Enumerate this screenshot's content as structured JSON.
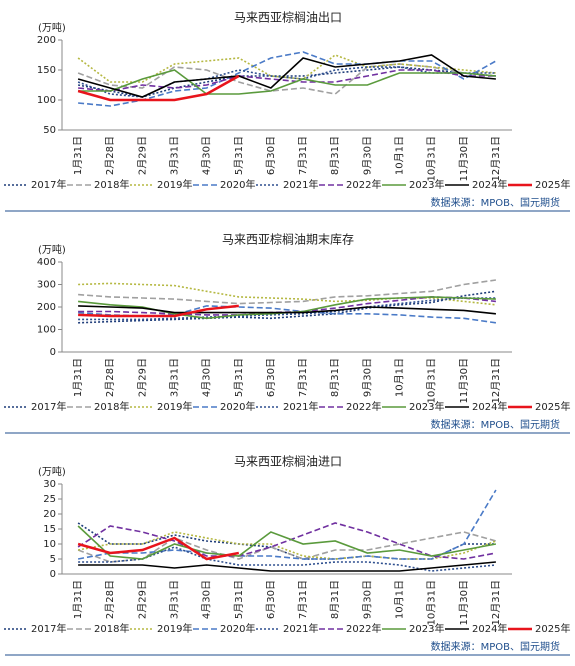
{
  "chart_data": [
    {
      "type": "line",
      "title": "马来西亚棕榈油出口",
      "y_label": "(万吨)",
      "source": "数据来源：MPOB、国元期货",
      "categories": [
        "1月31日",
        "2月28日",
        "2月29日",
        "3月31日",
        "4月30日",
        "5月31日",
        "6月30日",
        "7月31日",
        "8月31日",
        "9月30日",
        "10月1日",
        "10月31日",
        "11月30日",
        "12月31日"
      ],
      "ylim": [
        50,
        200
      ],
      "yticks": [
        50,
        100,
        150,
        200
      ],
      "series": [
        {
          "name": "2017年",
          "color": "#1f3d7a",
          "style": "dotted",
          "values": [
            125,
            115,
            105,
            120,
            130,
            140,
            140,
            140,
            145,
            150,
            155,
            150,
            145,
            140
          ]
        },
        {
          "name": "2018年",
          "color": "#a0a0a0",
          "style": "dashed",
          "values": [
            145,
            125,
            120,
            155,
            150,
            130,
            115,
            120,
            110,
            155,
            160,
            155,
            145,
            140
          ]
        },
        {
          "name": "2019年",
          "color": "#b5b842",
          "style": "dotted",
          "values": [
            170,
            130,
            130,
            160,
            165,
            170,
            140,
            135,
            175,
            155,
            160,
            155,
            150,
            145
          ]
        },
        {
          "name": "2020年",
          "color": "#4a7ac7",
          "style": "dashed",
          "values": [
            95,
            90,
            100,
            115,
            120,
            145,
            170,
            180,
            160,
            160,
            165,
            165,
            135,
            165
          ]
        },
        {
          "name": "2021年",
          "color": "#2e4f8f",
          "style": "dotted",
          "values": [
            130,
            110,
            105,
            130,
            135,
            150,
            140,
            135,
            150,
            155,
            155,
            145,
            145,
            145
          ]
        },
        {
          "name": "2022年",
          "color": "#7030a0",
          "style": "dashed",
          "values": [
            120,
            115,
            125,
            120,
            125,
            140,
            135,
            130,
            130,
            140,
            150,
            150,
            140,
            140
          ]
        },
        {
          "name": "2023年",
          "color": "#5a9a3c",
          "style": "solid",
          "values": [
            115,
            115,
            135,
            150,
            110,
            110,
            115,
            135,
            125,
            125,
            145,
            145,
            145,
            140
          ]
        },
        {
          "name": "2024年",
          "color": "#000000",
          "style": "solid",
          "values": [
            135,
            120,
            105,
            130,
            135,
            140,
            120,
            170,
            155,
            160,
            165,
            175,
            140,
            135
          ]
        },
        {
          "name": "2025年",
          "color": "#e8141c",
          "style": "solid",
          "values": [
            115,
            100,
            100,
            100,
            110,
            140,
            null,
            null,
            null,
            null,
            null,
            null,
            null,
            null
          ]
        }
      ]
    },
    {
      "type": "line",
      "title": "马来西亚棕榈油期末库存",
      "y_label": "(万吨)",
      "source": "数据来源：MPOB、国元期货",
      "categories": [
        "1月31日",
        "2月28日",
        "2月29日",
        "3月31日",
        "4月30日",
        "5月31日",
        "6月30日",
        "7月31日",
        "8月31日",
        "9月30日",
        "10月1日",
        "10月31日",
        "11月30日",
        "12月31日"
      ],
      "ylim": [
        0,
        400
      ],
      "yticks": [
        0,
        100,
        200,
        300,
        400
      ],
      "series": [
        {
          "name": "2017年",
          "color": "#1f3d7a",
          "style": "dotted",
          "values": [
            130,
            135,
            140,
            145,
            150,
            155,
            150,
            160,
            170,
            195,
            210,
            220,
            250,
            270
          ]
        },
        {
          "name": "2018年",
          "color": "#a0a0a0",
          "style": "dashed",
          "values": [
            255,
            245,
            240,
            235,
            225,
            215,
            220,
            225,
            245,
            250,
            260,
            270,
            300,
            320
          ]
        },
        {
          "name": "2019年",
          "color": "#b5b842",
          "style": "dotted",
          "values": [
            300,
            305,
            300,
            295,
            270,
            245,
            240,
            235,
            225,
            230,
            240,
            240,
            225,
            210
          ]
        },
        {
          "name": "2020年",
          "color": "#4a7ac7",
          "style": "dashed",
          "values": [
            175,
            165,
            160,
            165,
            205,
            200,
            195,
            180,
            170,
            170,
            165,
            155,
            150,
            130
          ]
        },
        {
          "name": "2021年",
          "color": "#2e4f8f",
          "style": "dotted",
          "values": [
            145,
            145,
            145,
            150,
            155,
            160,
            165,
            170,
            180,
            200,
            215,
            230,
            240,
            240
          ]
        },
        {
          "name": "2022年",
          "color": "#7030a0",
          "style": "dashed",
          "values": [
            180,
            180,
            175,
            170,
            165,
            165,
            175,
            180,
            195,
            215,
            230,
            245,
            240,
            225
          ]
        },
        {
          "name": "2023年",
          "color": "#5a9a3c",
          "style": "solid",
          "values": [
            225,
            210,
            200,
            170,
            150,
            165,
            170,
            180,
            210,
            235,
            240,
            245,
            240,
            235
          ]
        },
        {
          "name": "2024年",
          "color": "#000000",
          "style": "solid",
          "values": [
            205,
            200,
            195,
            175,
            175,
            175,
            175,
            175,
            185,
            200,
            195,
            190,
            185,
            170
          ]
        },
        {
          "name": "2025年",
          "color": "#e8141c",
          "style": "solid",
          "values": [
            165,
            160,
            160,
            160,
            190,
            205,
            null,
            null,
            null,
            null,
            null,
            null,
            null,
            null
          ]
        }
      ]
    },
    {
      "type": "line",
      "title": "马来西亚棕榈油进口",
      "y_label": "(万吨)",
      "source": "数据来源：MPOB、国元期货",
      "categories": [
        "1月31日",
        "2月28日",
        "2月29日",
        "3月31日",
        "4月30日",
        "5月31日",
        "6月30日",
        "7月31日",
        "8月31日",
        "9月30日",
        "10月1日",
        "10月31日",
        "11月30日",
        "12月31日"
      ],
      "ylim": [
        0,
        30
      ],
      "yticks": [
        0,
        5,
        10,
        15,
        20,
        25,
        30
      ],
      "series": [
        {
          "name": "2017年",
          "color": "#1f3d7a",
          "style": "dotted",
          "values": [
            17,
            10,
            10,
            13,
            11,
            10,
            9,
            5,
            5,
            6,
            5,
            5,
            10,
            10
          ]
        },
        {
          "name": "2018年",
          "color": "#a0a0a0",
          "style": "dashed",
          "values": [
            8,
            4,
            5,
            12,
            8,
            5,
            9,
            5,
            8,
            8,
            10,
            12,
            14,
            11
          ]
        },
        {
          "name": "2019年",
          "color": "#b5b842",
          "style": "dotted",
          "values": [
            8,
            10,
            10,
            14,
            12,
            10,
            10,
            6,
            5,
            6,
            5,
            5,
            7,
            11
          ]
        },
        {
          "name": "2020年",
          "color": "#4a7ac7",
          "style": "dashed",
          "values": [
            5,
            7,
            7,
            8,
            7,
            6,
            6,
            5,
            5,
            6,
            5,
            5,
            10,
            28
          ]
        },
        {
          "name": "2021年",
          "color": "#2e4f8f",
          "style": "dotted",
          "values": [
            4,
            4,
            5,
            9,
            5,
            3,
            3,
            3,
            4,
            4,
            3,
            1,
            2,
            3
          ]
        },
        {
          "name": "2022年",
          "color": "#7030a0",
          "style": "dashed",
          "values": [
            9,
            16,
            14,
            11,
            6,
            6,
            9,
            13,
            17,
            14,
            10,
            6,
            5,
            7
          ]
        },
        {
          "name": "2023年",
          "color": "#5a9a3c",
          "style": "solid",
          "values": [
            16,
            6,
            5,
            10,
            7,
            6,
            14,
            10,
            11,
            7,
            8,
            6,
            8,
            10
          ]
        },
        {
          "name": "2024年",
          "color": "#000000",
          "style": "solid",
          "values": [
            3,
            3,
            3,
            2,
            3,
            2,
            1,
            1,
            1,
            1,
            1,
            2,
            3,
            4
          ]
        },
        {
          "name": "2025年",
          "color": "#e8141c",
          "style": "solid",
          "values": [
            10,
            7,
            8,
            12,
            5,
            7,
            null,
            null,
            null,
            null,
            null,
            null,
            null,
            null
          ]
        }
      ]
    }
  ]
}
